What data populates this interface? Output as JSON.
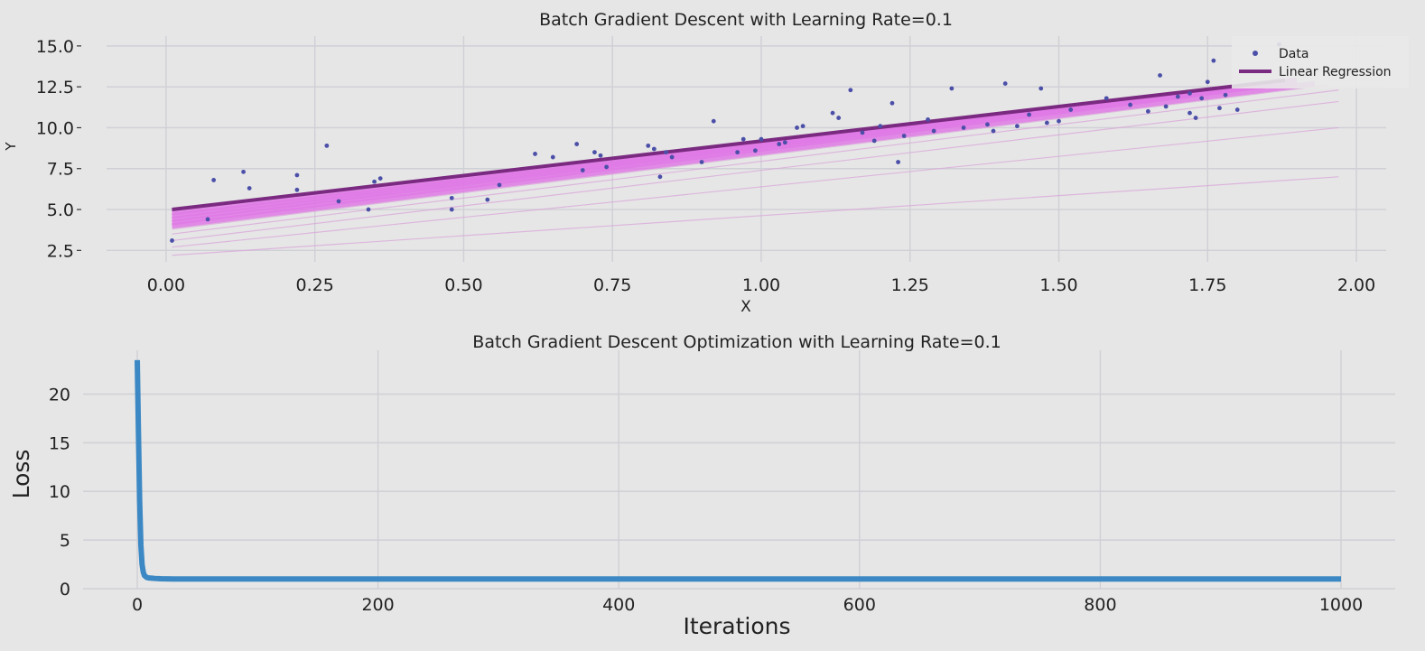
{
  "chart_data": [
    {
      "type": "scatter",
      "title": "Batch Gradient Descent with Learning Rate=0.1",
      "xlabel": "X",
      "ylabel": "Y",
      "xlim": [
        -0.1,
        2.05
      ],
      "ylim": [
        1.8,
        15.6
      ],
      "xticks": [
        0.0,
        0.25,
        0.5,
        0.75,
        1.0,
        1.25,
        1.5,
        1.75,
        2.0
      ],
      "xtick_labels": [
        "0.00",
        "0.25",
        "0.50",
        "0.75",
        "1.00",
        "1.25",
        "1.50",
        "1.75",
        "2.00"
      ],
      "yticks": [
        2.5,
        5.0,
        7.5,
        10.0,
        12.5,
        15.0
      ],
      "ytick_labels": [
        "2.5",
        "5.0",
        "7.5",
        "10.0",
        "12.5",
        "15.0"
      ],
      "grid": true,
      "legend_position": "top-right",
      "legend": [
        {
          "label": "Data",
          "marker": "dot",
          "color": "#4b4fa8"
        },
        {
          "label": "Linear Regression",
          "marker": "line",
          "color": "#7a2a80"
        }
      ],
      "data_points": {
        "x": [
          0.01,
          0.07,
          0.08,
          0.13,
          0.14,
          0.22,
          0.22,
          0.27,
          0.29,
          0.34,
          0.35,
          0.36,
          0.48,
          0.48,
          0.54,
          0.56,
          0.62,
          0.65,
          0.69,
          0.7,
          0.72,
          0.73,
          0.74,
          0.81,
          0.82,
          0.83,
          0.84,
          0.85,
          0.9,
          0.92,
          0.96,
          0.97,
          0.99,
          1.0,
          1.03,
          1.04,
          1.06,
          1.07,
          1.12,
          1.13,
          1.15,
          1.17,
          1.19,
          1.2,
          1.22,
          1.23,
          1.24,
          1.28,
          1.29,
          1.32,
          1.34,
          1.38,
          1.39,
          1.41,
          1.43,
          1.45,
          1.47,
          1.48,
          1.5,
          1.52,
          1.58,
          1.62,
          1.65,
          1.67,
          1.68,
          1.7,
          1.72,
          1.72,
          1.73,
          1.74,
          1.75,
          1.76,
          1.77,
          1.78,
          1.8,
          1.87
        ],
        "y": [
          3.1,
          4.4,
          6.8,
          7.3,
          6.3,
          6.2,
          7.1,
          8.9,
          5.5,
          5.0,
          6.7,
          6.9,
          5.0,
          5.7,
          5.6,
          6.5,
          8.4,
          8.2,
          9.0,
          7.4,
          8.5,
          8.3,
          7.6,
          8.9,
          8.7,
          7.0,
          8.5,
          8.2,
          7.9,
          10.4,
          8.5,
          9.3,
          8.6,
          9.3,
          9.0,
          9.1,
          10.0,
          10.1,
          10.9,
          10.6,
          12.3,
          9.7,
          9.2,
          10.1,
          11.5,
          7.9,
          9.5,
          10.5,
          9.8,
          12.4,
          10.0,
          10.2,
          9.8,
          12.7,
          10.1,
          10.8,
          12.4,
          10.3,
          10.4,
          11.1,
          11.8,
          11.4,
          11.0,
          13.2,
          11.3,
          11.9,
          10.9,
          12.1,
          10.6,
          11.8,
          12.8,
          14.1,
          11.2,
          12.0,
          11.1,
          15.1
        ]
      },
      "regression_line": {
        "x": [
          0.01,
          1.88
        ],
        "y": [
          5.0,
          12.9
        ]
      },
      "iteration_lines": [
        {
          "x": [
            0.01,
            1.97
          ],
          "y": [
            2.2,
            7.0
          ]
        },
        {
          "x": [
            0.01,
            1.97
          ],
          "y": [
            2.7,
            10.0
          ]
        },
        {
          "x": [
            0.01,
            1.97
          ],
          "y": [
            3.1,
            11.6
          ]
        },
        {
          "x": [
            0.01,
            1.97
          ],
          "y": [
            3.5,
            12.3
          ]
        },
        {
          "x": [
            0.01,
            1.95
          ],
          "y": [
            3.8,
            12.6
          ]
        },
        {
          "x": [
            0.01,
            1.93
          ],
          "y": [
            4.0,
            12.7
          ]
        },
        {
          "x": [
            0.01,
            1.9
          ],
          "y": [
            4.2,
            12.8
          ]
        },
        {
          "x": [
            0.01,
            1.9
          ],
          "y": [
            4.4,
            12.85
          ]
        },
        {
          "x": [
            0.01,
            1.9
          ],
          "y": [
            4.6,
            12.9
          ]
        },
        {
          "x": [
            0.01,
            1.9
          ],
          "y": [
            4.8,
            12.9
          ]
        }
      ]
    },
    {
      "type": "line",
      "title": "Batch Gradient Descent Optimization with Learning Rate=0.1",
      "xlabel": "Iterations",
      "ylabel": "Loss",
      "xlim": [
        -45,
        1045
      ],
      "ylim": [
        0,
        24.5
      ],
      "xticks": [
        0,
        200,
        400,
        600,
        800,
        1000
      ],
      "xtick_labels": [
        "0",
        "200",
        "400",
        "600",
        "800",
        "1000"
      ],
      "yticks": [
        0,
        5,
        10,
        15,
        20
      ],
      "ytick_labels": [
        "0",
        "5",
        "10",
        "15",
        "20"
      ],
      "grid": true,
      "series": [
        {
          "color": "#3b88c4",
          "x": [
            0,
            1,
            2,
            3,
            4,
            5,
            6,
            8,
            10,
            15,
            20,
            30,
            50,
            100,
            200,
            400,
            600,
            800,
            1000
          ],
          "y": [
            23.5,
            16.0,
            9.0,
            4.5,
            2.5,
            1.7,
            1.35,
            1.15,
            1.1,
            1.05,
            1.02,
            1.0,
            1.0,
            1.0,
            1.0,
            1.0,
            1.0,
            1.0,
            1.0
          ]
        }
      ]
    }
  ]
}
